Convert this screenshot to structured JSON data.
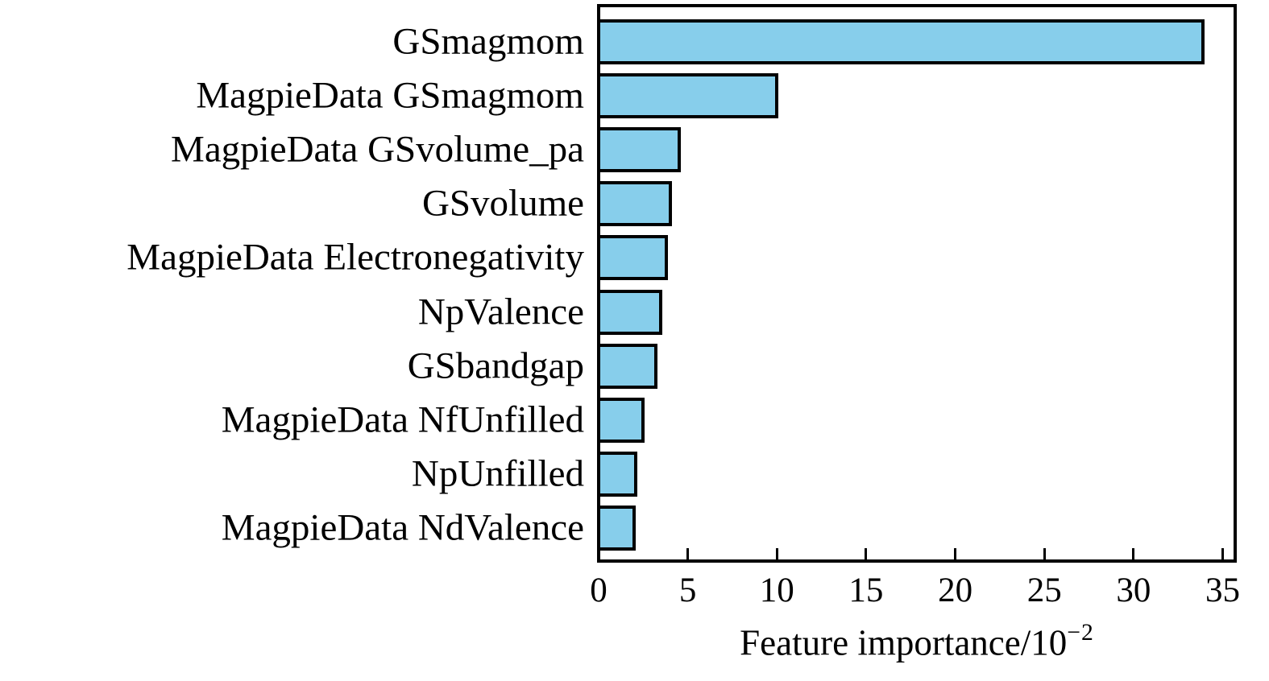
{
  "chart_data": {
    "type": "bar",
    "orientation": "horizontal",
    "categories": [
      "GSmagmom",
      "MagpieData GSmagmom",
      "MagpieData GSvolume_pa",
      "GSvolume",
      "MagpieData Electronegativity",
      "NpValence",
      "GSbandgap",
      "MagpieData NfUnfilled",
      "NpUnfilled",
      "MagpieData NdValence"
    ],
    "values": [
      33.9,
      10.0,
      4.5,
      4.0,
      3.8,
      3.5,
      3.2,
      2.5,
      2.1,
      2.0
    ],
    "xlabel": "Feature importance/10⁻²",
    "xlabel_base": "Feature importance/10",
    "xlabel_exponent": "−2",
    "x_tick_labels": [
      "0",
      "5",
      "10",
      "15",
      "20",
      "25",
      "30",
      "35"
    ],
    "x_tick_values": [
      0,
      5,
      10,
      15,
      20,
      25,
      30,
      35
    ],
    "xlim": [
      0,
      35.7
    ],
    "grid": false,
    "legend": false,
    "bar_fill_color": "#87CEEB",
    "bar_edge_color": "#000000",
    "axis_color": "#000000"
  }
}
